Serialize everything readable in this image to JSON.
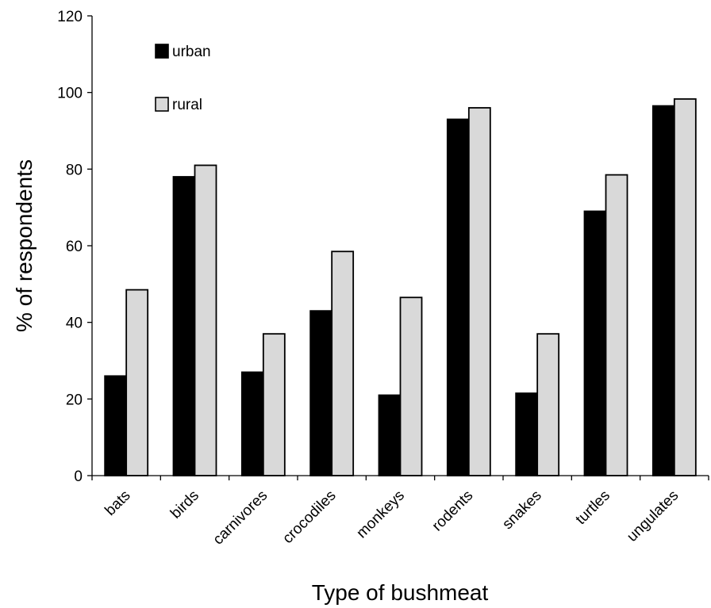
{
  "chart_data": {
    "type": "bar",
    "title": "",
    "xlabel": "Type of bushmeat",
    "ylabel": "% of respondents",
    "ylim": [
      0,
      120
    ],
    "yticks": [
      0,
      20,
      40,
      60,
      80,
      100,
      120
    ],
    "grid": false,
    "legend_position": "top-left",
    "categories": [
      "bats",
      "birds",
      "carnivores",
      "crocodiles",
      "monkeys",
      "rodents",
      "snakes",
      "turtles",
      "ungulates"
    ],
    "series": [
      {
        "name": "urban",
        "color": "#000000",
        "values": [
          26,
          78,
          27,
          43,
          21,
          93,
          21.5,
          69,
          96.5
        ]
      },
      {
        "name": "rural",
        "color": "#d9d9d9",
        "values": [
          48.5,
          81,
          37,
          58.5,
          46.5,
          96,
          37,
          78.5,
          98.3
        ]
      }
    ]
  }
}
